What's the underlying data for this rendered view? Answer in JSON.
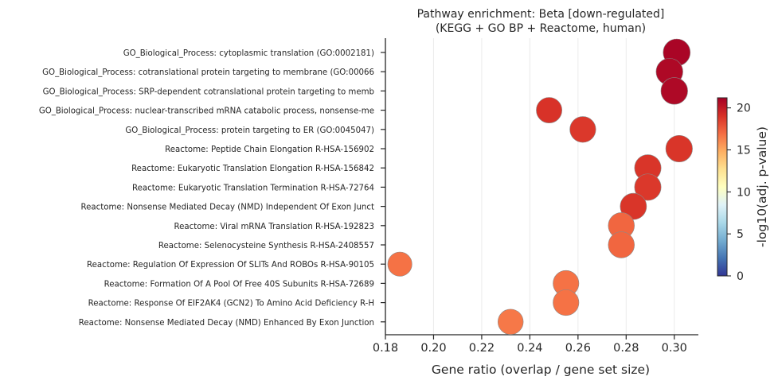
{
  "chart_data": {
    "type": "scatter",
    "title": "Pathway enrichment: Beta  [down-regulated]",
    "subtitle": "(KEGG + GO BP + Reactome, human)",
    "xlabel": "Gene ratio (overlap / gene set size)",
    "ylabel": "",
    "xlim": [
      0.18,
      0.31
    ],
    "x_ticks": [
      "0.18",
      "0.20",
      "0.22",
      "0.24",
      "0.26",
      "0.28",
      "0.30"
    ],
    "x_tick_values": [
      0.18,
      0.2,
      0.22,
      0.24,
      0.26,
      0.28,
      0.3
    ],
    "grid": "vertical",
    "colorbar": {
      "label": "-log10(adj. p-value)",
      "range": [
        0,
        21.2
      ],
      "ticks": [
        "0",
        "5",
        "10",
        "15",
        "20"
      ],
      "tick_values": [
        0,
        5,
        10,
        15,
        20
      ],
      "colormap": "RdYlBu_r",
      "stops": [
        "#313695",
        "#4575b4",
        "#74add1",
        "#abd9e9",
        "#e0f3f8",
        "#ffffbf",
        "#fee090",
        "#fdae61",
        "#f46d43",
        "#d73027",
        "#a50026"
      ]
    },
    "categories": [
      "GO_Biological_Process: cytoplasmic translation (GO:0002181)",
      "GO_Biological_Process: cotranslational protein targeting to membrane (GO:00066",
      "GO_Biological_Process: SRP-dependent cotranslational protein targeting to memb",
      "GO_Biological_Process: nuclear-transcribed mRNA catabolic process, nonsense-me",
      "GO_Biological_Process: protein targeting to ER (GO:0045047)",
      "Reactome: Peptide Chain Elongation R-HSA-156902",
      "Reactome: Eukaryotic Translation Elongation R-HSA-156842",
      "Reactome: Eukaryotic Translation Termination R-HSA-72764",
      "Reactome: Nonsense Mediated Decay (NMD) Independent Of Exon Junct",
      "Reactome: Viral mRNA Translation R-HSA-192823",
      "Reactome: Selenocysteine Synthesis R-HSA-2408557",
      "Reactome: Regulation Of Expression Of SLITs And ROBOs R-HSA-90105",
      "Reactome: Formation Of A Pool Of Free 40S Subunits R-HSA-72689",
      "Reactome: Response Of EIF2AK4 (GCN2) To Amino Acid Deficiency R-H",
      "Reactome: Nonsense Mediated Decay (NMD) Enhanced By Exon Junction"
    ],
    "points": [
      {
        "x": 0.301,
        "color_value": 21.0,
        "size": 1.0
      },
      {
        "x": 0.298,
        "color_value": 20.8,
        "size": 0.97
      },
      {
        "x": 0.3,
        "color_value": 20.8,
        "size": 0.97
      },
      {
        "x": 0.248,
        "color_value": 19.0,
        "size": 0.85
      },
      {
        "x": 0.262,
        "color_value": 18.8,
        "size": 0.88
      },
      {
        "x": 0.302,
        "color_value": 18.9,
        "size": 0.96
      },
      {
        "x": 0.289,
        "color_value": 18.9,
        "size": 0.94
      },
      {
        "x": 0.289,
        "color_value": 18.8,
        "size": 0.94
      },
      {
        "x": 0.283,
        "color_value": 18.9,
        "size": 0.92
      },
      {
        "x": 0.278,
        "color_value": 17.2,
        "size": 0.9
      },
      {
        "x": 0.278,
        "color_value": 17.2,
        "size": 0.9
      },
      {
        "x": 0.186,
        "color_value": 16.8,
        "size": 0.7
      },
      {
        "x": 0.255,
        "color_value": 16.8,
        "size": 0.87
      },
      {
        "x": 0.255,
        "color_value": 16.8,
        "size": 0.87
      },
      {
        "x": 0.232,
        "color_value": 16.6,
        "size": 0.82
      }
    ]
  }
}
